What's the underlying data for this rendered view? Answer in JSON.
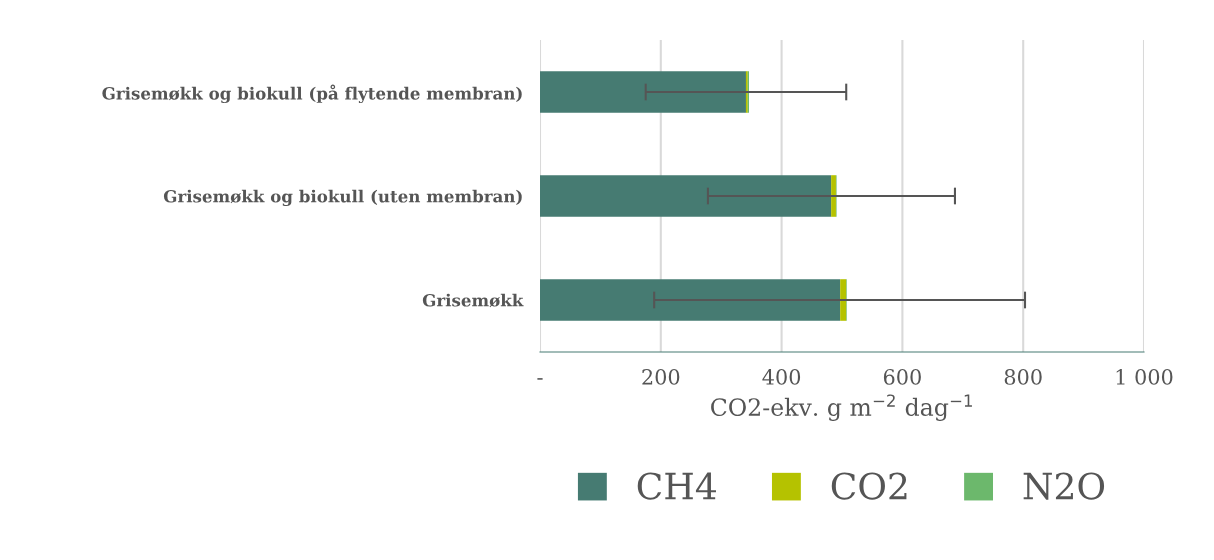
{
  "chart_data": {
    "type": "bar",
    "orientation": "horizontal",
    "stacked": true,
    "categories": [
      "Grisemøkk og biokull (på flytende membran)",
      "Grisemøkk og biokull (uten membran)",
      "Grisemøkk"
    ],
    "series": [
      {
        "name": "CH4",
        "color": "#467b72",
        "values": [
          341,
          482,
          497
        ]
      },
      {
        "name": "CO2",
        "color": "#b5c200",
        "values": [
          3,
          8,
          10
        ]
      },
      {
        "name": "N2O",
        "color": "#6cb86c",
        "values": [
          2,
          1,
          1
        ],
        "errors": [
          [
            175,
            507
          ],
          [
            278,
            687
          ],
          [
            189,
            803
          ]
        ]
      }
    ],
    "xlabel": "CO2-ekv. g m$^{−2}$ dag$^{−1}$",
    "xlim": [
      0,
      1000
    ],
    "xticks": [
      {
        "value": 0,
        "label": "-"
      },
      200,
      400,
      600,
      800,
      {
        "value": 1000,
        "label": "1 000"
      }
    ],
    "grid": "x",
    "legend": "bottom"
  }
}
